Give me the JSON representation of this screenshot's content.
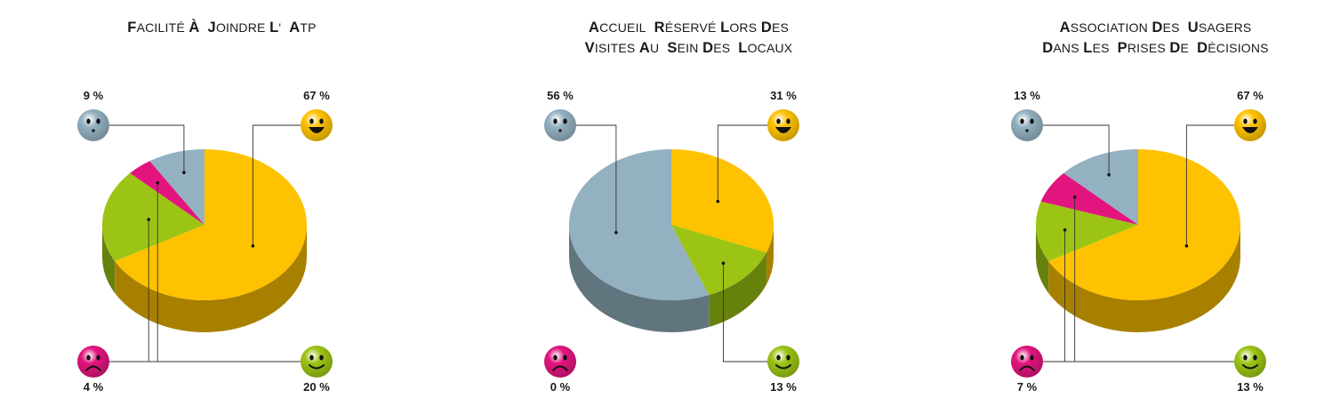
{
  "colors": {
    "ok": "#ffc200",
    "neutral": "#93b1c0",
    "bad": "#e2157f",
    "good": "#9cc414",
    "leader": "#333333"
  },
  "chart_data": [
    {
      "type": "pie",
      "title_lines": [
        "Facilité à  joindre l'  ATP"
      ],
      "slices": [
        {
          "key": "satisfied",
          "icon": "smiley-happy-icon",
          "value": 67,
          "label": "67 %"
        },
        {
          "key": "very-satisfied",
          "icon": "smiley-smile-icon",
          "value": 20,
          "label": "20 %"
        },
        {
          "key": "unsatisfied",
          "icon": "smiley-sad-icon",
          "value": 4,
          "label": "4 %"
        },
        {
          "key": "neutral",
          "icon": "smiley-neutral-icon",
          "value": 9,
          "label": "9 %"
        }
      ]
    },
    {
      "type": "pie",
      "title_lines": [
        "Accueil  réservé lors des",
        "visites au  sein des  locaux"
      ],
      "slices": [
        {
          "key": "satisfied",
          "icon": "smiley-happy-icon",
          "value": 31,
          "label": "31 %"
        },
        {
          "key": "very-satisfied",
          "icon": "smiley-smile-icon",
          "value": 13,
          "label": "13 %"
        },
        {
          "key": "unsatisfied",
          "icon": "smiley-sad-icon",
          "value": 0,
          "label": "0 %"
        },
        {
          "key": "neutral",
          "icon": "smiley-neutral-icon",
          "value": 56,
          "label": "56 %"
        }
      ]
    },
    {
      "type": "pie",
      "title_lines": [
        "Association des  usagers",
        "dans les  prises de  décisions"
      ],
      "slices": [
        {
          "key": "satisfied",
          "icon": "smiley-happy-icon",
          "value": 67,
          "label": "67 %"
        },
        {
          "key": "very-satisfied",
          "icon": "smiley-smile-icon",
          "value": 13,
          "label": "13 %"
        },
        {
          "key": "unsatisfied",
          "icon": "smiley-sad-icon",
          "value": 7,
          "label": "7 %"
        },
        {
          "key": "neutral",
          "icon": "smiley-neutral-icon",
          "value": 13,
          "label": "13 %"
        }
      ]
    }
  ]
}
